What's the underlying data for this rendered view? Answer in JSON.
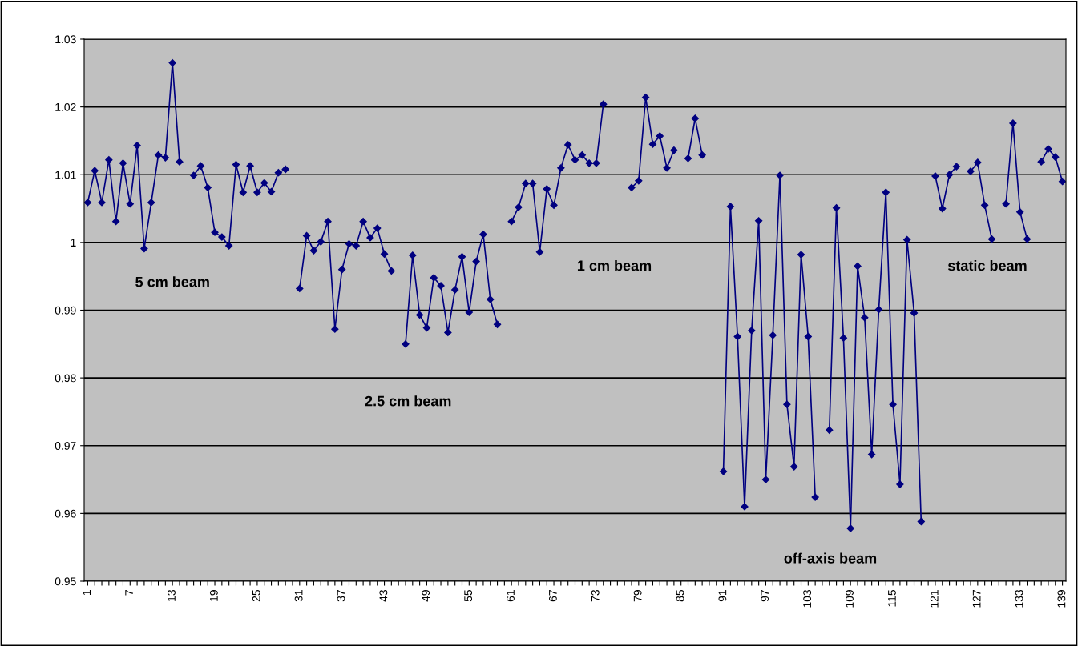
{
  "chart_data": {
    "type": "line",
    "categories": [
      "1",
      null,
      null,
      null,
      null,
      null,
      "7",
      null,
      null,
      null,
      null,
      null,
      "13",
      null,
      null,
      null,
      null,
      null,
      "19",
      null,
      null,
      null,
      null,
      null,
      "25",
      null,
      null,
      null,
      null,
      null,
      "31",
      null,
      null,
      null,
      null,
      null,
      "37",
      null,
      null,
      null,
      null,
      null,
      "43",
      null,
      null,
      null,
      null,
      null,
      "49",
      null,
      null,
      null,
      null,
      null,
      "55",
      null,
      null,
      null,
      null,
      null,
      "61",
      null,
      null,
      null,
      null,
      null,
      "67",
      null,
      null,
      null,
      null,
      null,
      "73",
      null,
      null,
      null,
      null,
      null,
      "79",
      null,
      null,
      null,
      null,
      null,
      "85",
      null,
      null,
      null,
      null,
      null,
      "91",
      null,
      null,
      null,
      null,
      null,
      "97",
      null,
      null,
      null,
      null,
      null,
      "103",
      null,
      null,
      null,
      null,
      null,
      "109",
      null,
      null,
      null,
      null,
      null,
      "115",
      null,
      null,
      null,
      null,
      null,
      "121",
      null,
      null,
      null,
      null,
      null,
      "127",
      null,
      null,
      null,
      null,
      null,
      "133",
      null,
      null,
      null,
      null,
      null,
      "139"
    ],
    "series": [
      {
        "color": "#000080",
        "values": [
          1.0059,
          1.0106,
          1.0059,
          1.0122,
          1.0031,
          1.0117,
          1.0057,
          1.0143,
          0.9991,
          1.0059,
          1.0129,
          1.0125,
          1.0265,
          1.0119,
          null,
          1.0099,
          1.0113,
          1.0081,
          1.0015,
          1.0008,
          0.9995,
          1.0115,
          1.0074,
          1.0113,
          1.0074,
          1.0088,
          1.0075,
          1.0103,
          1.0108,
          null,
          0.9932,
          1.001,
          0.9988,
          1.0001,
          1.0031,
          0.9872,
          0.996,
          0.9998,
          0.9995,
          1.0031,
          1.0007,
          1.0021,
          0.9983,
          0.9958,
          null,
          0.985,
          0.9981,
          0.9893,
          0.9874,
          0.9948,
          0.9936,
          0.9867,
          0.993,
          0.9979,
          0.9897,
          0.9972,
          1.0012,
          0.9916,
          0.9879,
          null,
          1.0031,
          1.0052,
          1.0087,
          1.0087,
          0.9986,
          1.0079,
          1.0055,
          1.011,
          1.0144,
          1.0122,
          1.0129,
          1.0117,
          1.0117,
          1.0204,
          null,
          null,
          null,
          1.0081,
          1.0091,
          1.0214,
          1.0145,
          1.0157,
          1.011,
          1.0136,
          null,
          1.0124,
          1.0183,
          1.0129,
          null,
          null,
          0.9662,
          1.0053,
          0.9861,
          0.961,
          0.987,
          1.0032,
          0.965,
          0.9863,
          1.0099,
          0.9761,
          0.9669,
          0.9982,
          0.9861,
          0.9624,
          null,
          0.9723,
          1.0051,
          0.9859,
          0.9578,
          0.9965,
          0.9889,
          0.9687,
          0.9901,
          1.0074,
          0.9761,
          0.9643,
          1.0004,
          0.9896,
          0.9588,
          null,
          1.0098,
          1.005,
          1.01,
          1.0112,
          null,
          1.0105,
          1.0118,
          1.0055,
          1.0005,
          null,
          1.0057,
          1.0176,
          1.0045,
          1.0005,
          null,
          1.0119,
          1.0138,
          1.0126,
          1.009
        ]
      }
    ],
    "ylim": [
      0.95,
      1.03
    ],
    "yticks": [
      0.95,
      0.96,
      0.97,
      0.98,
      0.99,
      1,
      1.01,
      1.02,
      1.03
    ],
    "grid": "y",
    "marker": "diamond",
    "line_style": "solid",
    "annotations": [
      "5 cm beam",
      "2.5 cm beam",
      "1 cm beam",
      "off-axis beam",
      "static beam"
    ]
  }
}
